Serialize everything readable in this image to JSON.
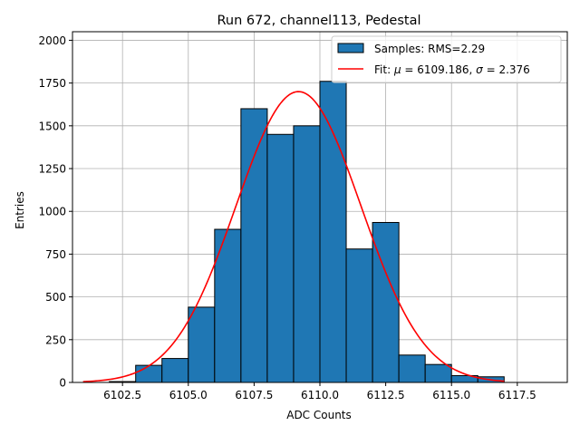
{
  "chart_data": {
    "type": "bar",
    "title": "Run 672, channel113, Pedestal",
    "xlabel": "ADC Counts",
    "ylabel": "Entries",
    "xlim": [
      6100.6,
      6119.4
    ],
    "ylim": [
      0,
      2050
    ],
    "grid": true,
    "legend_placement": "top-right",
    "x_ticks": [
      6102.5,
      6105.0,
      6107.5,
      6110.0,
      6112.5,
      6115.0,
      6117.5
    ],
    "x_tick_labels": [
      "6102.5",
      "6105.0",
      "6107.5",
      "6110.0",
      "6112.5",
      "6115.0",
      "6117.5"
    ],
    "y_ticks": [
      0,
      250,
      500,
      750,
      1000,
      1250,
      1500,
      1750,
      2000
    ],
    "y_tick_labels": [
      "0",
      "250",
      "500",
      "750",
      "1000",
      "1250",
      "1500",
      "1750",
      "2000"
    ],
    "histogram": {
      "name": "Samples: RMS=2.29",
      "color": "#1f77b4",
      "edge_color": "#000000",
      "bins": [
        {
          "x0": 6102.0,
          "x1": 6103.0,
          "count": 5
        },
        {
          "x0": 6103.0,
          "x1": 6104.0,
          "count": 100
        },
        {
          "x0": 6104.0,
          "x1": 6105.0,
          "count": 140
        },
        {
          "x0": 6105.0,
          "x1": 6106.0,
          "count": 440
        },
        {
          "x0": 6106.0,
          "x1": 6107.0,
          "count": 895
        },
        {
          "x0": 6107.0,
          "x1": 6108.0,
          "count": 1600
        },
        {
          "x0": 6108.0,
          "x1": 6109.0,
          "count": 1450
        },
        {
          "x0": 6109.0,
          "x1": 6110.0,
          "count": 1500
        },
        {
          "x0": 6110.0,
          "x1": 6111.0,
          "count": 1760
        },
        {
          "x0": 6111.0,
          "x1": 6112.0,
          "count": 780
        },
        {
          "x0": 6112.0,
          "x1": 6113.0,
          "count": 935
        },
        {
          "x0": 6113.0,
          "x1": 6114.0,
          "count": 160
        },
        {
          "x0": 6114.0,
          "x1": 6115.0,
          "count": 105
        },
        {
          "x0": 6115.0,
          "x1": 6116.0,
          "count": 40
        },
        {
          "x0": 6116.0,
          "x1": 6117.0,
          "count": 33
        }
      ]
    },
    "fit": {
      "name_prefix": "Fit: ",
      "mu_symbol": "μ",
      "mu_text": " = 6109.186, ",
      "sigma_symbol": "σ",
      "sigma_text": " = 2.376",
      "color": "#ff0000",
      "mu": 6109.186,
      "sigma": 2.376,
      "amplitude": 1700,
      "x_range": [
        6101.0,
        6117.0
      ]
    }
  }
}
